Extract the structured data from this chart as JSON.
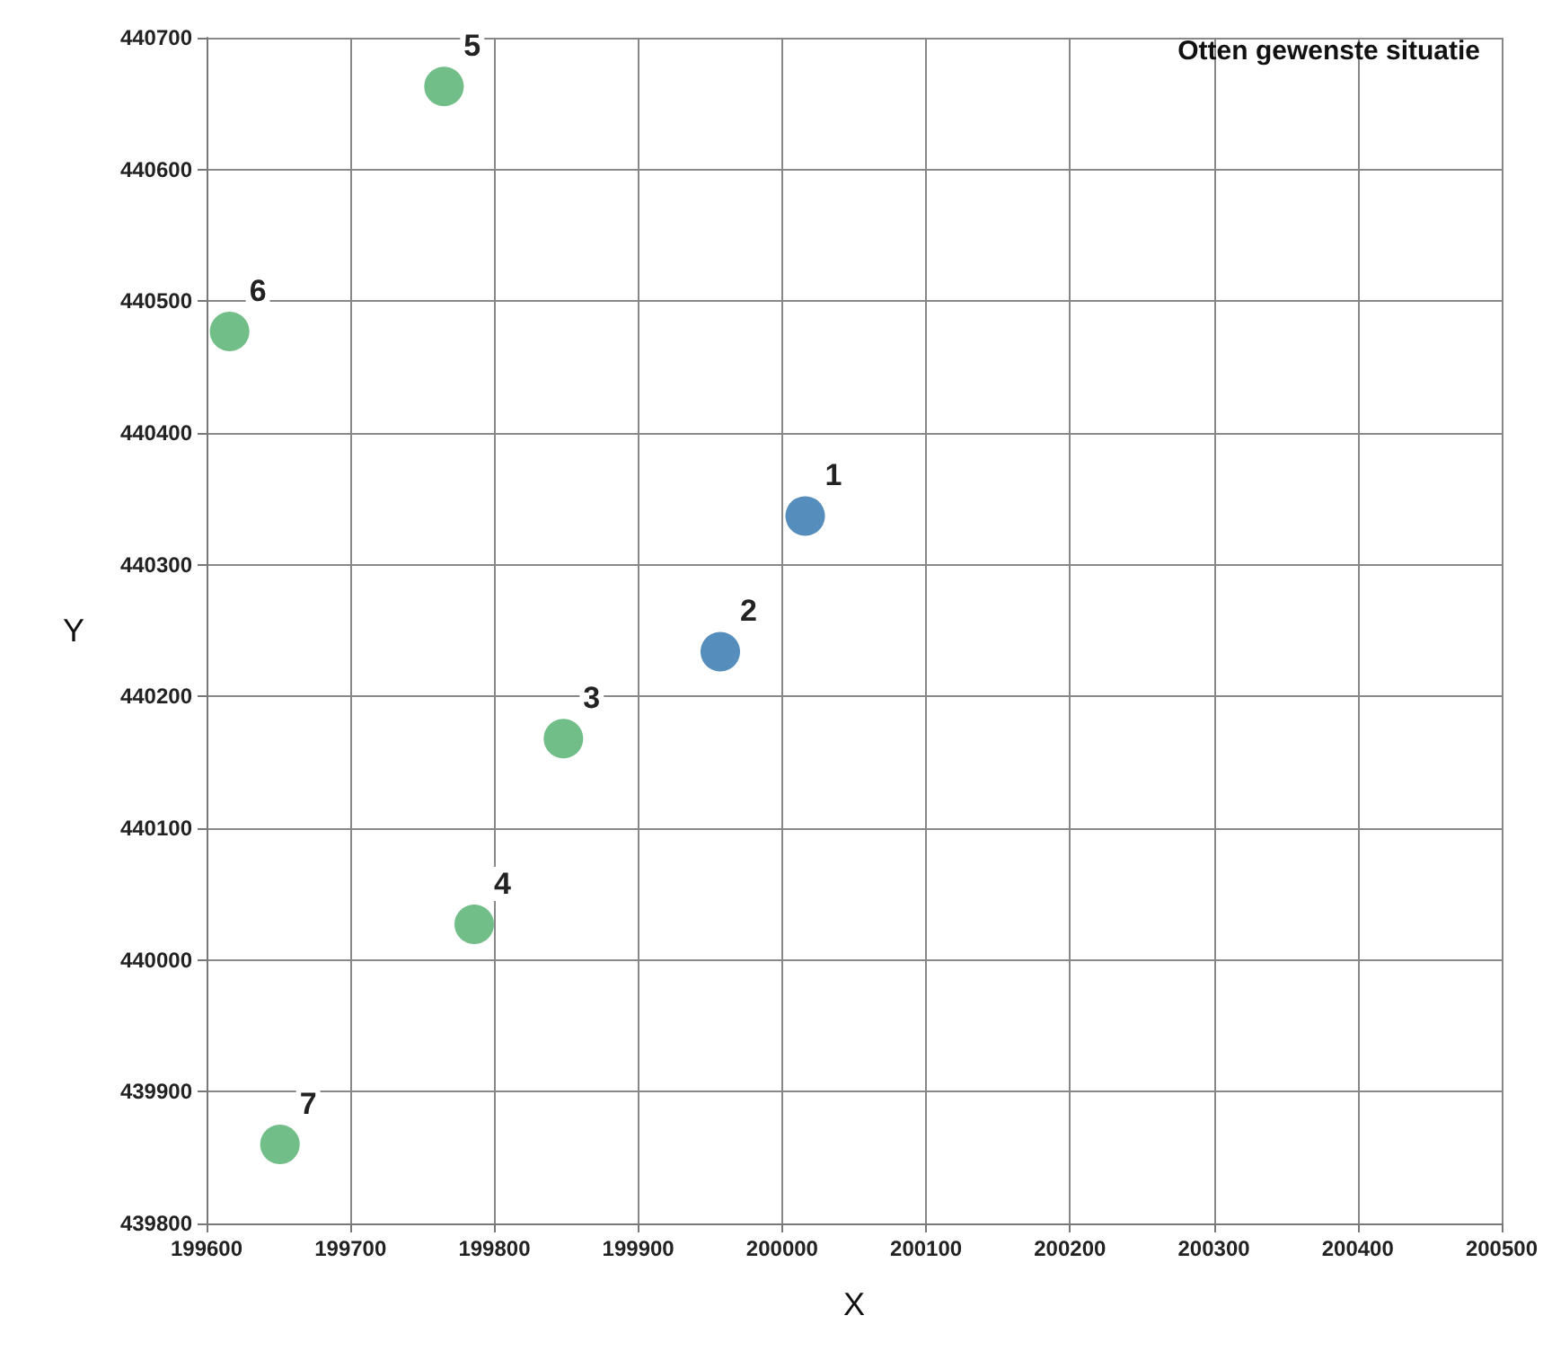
{
  "chart_data": {
    "type": "scatter",
    "title": "Otten gewenste situatie",
    "xlabel": "X",
    "ylabel": "Y",
    "series": [
      {
        "color": "#2b70ad",
        "x": [
          200016,
          199957
        ],
        "values": [
          440337,
          440234
        ]
      },
      {
        "color": "#4fae6c",
        "x": [
          199848,
          199786,
          199765,
          199616,
          199651
        ],
        "values": [
          440168,
          440027,
          440663,
          440477,
          439860
        ]
      }
    ],
    "annotations": [
      {
        "text": "1",
        "x": 200016,
        "y": 440337
      },
      {
        "text": "2",
        "x": 199957,
        "y": 440234
      },
      {
        "text": "3",
        "x": 199848,
        "y": 440168
      },
      {
        "text": "4",
        "x": 199786,
        "y": 440027
      },
      {
        "text": "5",
        "x": 199765,
        "y": 440663
      },
      {
        "text": "6",
        "x": 199616,
        "y": 440477
      },
      {
        "text": "7",
        "x": 199651,
        "y": 439860
      }
    ],
    "xlim": [
      199600,
      200500
    ],
    "xticks": [
      199600,
      199700,
      199800,
      199900,
      200000,
      200100,
      200200,
      200300,
      200400,
      200500
    ],
    "ylim": [
      439800,
      440700
    ],
    "yticks": [
      439800,
      439900,
      440000,
      440100,
      440200,
      440300,
      440400,
      440500,
      440600,
      440700
    ],
    "grid": true,
    "marker": "circle"
  }
}
